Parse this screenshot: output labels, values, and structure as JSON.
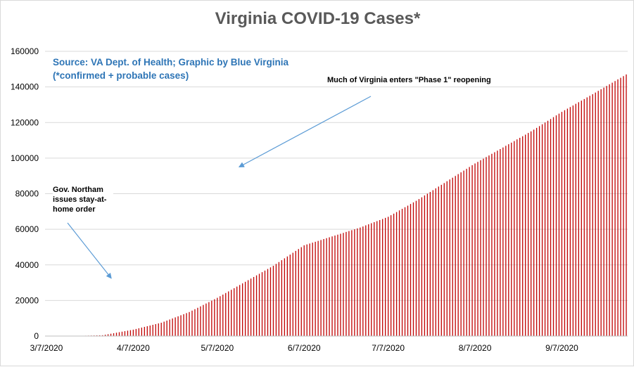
{
  "chart_data": {
    "type": "bar",
    "title": "Virginia COVID-19 Cases*",
    "source_note": [
      "Source: VA Dept. of Health; Graphic by Blue Virginia",
      "(*confirmed + probable cases)"
    ],
    "xlabel": "",
    "ylabel": "",
    "x_start": "3/7/2020",
    "x_end": "9/30/2020",
    "ylim": [
      0,
      160000
    ],
    "y_ticks": [
      0,
      20000,
      40000,
      60000,
      80000,
      100000,
      120000,
      140000,
      160000
    ],
    "y_tick_labels": [
      "0",
      "20000",
      "40000",
      "60000",
      "80000",
      "100000",
      "120000",
      "140000",
      "160000"
    ],
    "x_tick_labels": [
      "3/7/2020",
      "4/7/2020",
      "5/7/2020",
      "6/7/2020",
      "7/7/2020",
      "8/7/2020",
      "9/7/2020"
    ],
    "grid": "horizontal",
    "bar_color": "#c00000",
    "checkpoints": [
      {
        "date": "3/7/2020",
        "value": 0
      },
      {
        "date": "3/17/2020",
        "value": 67
      },
      {
        "date": "3/27/2020",
        "value": 460
      },
      {
        "date": "4/7/2020",
        "value": 3600
      },
      {
        "date": "4/17/2020",
        "value": 7500
      },
      {
        "date": "4/27/2020",
        "value": 13500
      },
      {
        "date": "5/7/2020",
        "value": 21500
      },
      {
        "date": "5/17/2020",
        "value": 30500
      },
      {
        "date": "5/27/2020",
        "value": 39500
      },
      {
        "date": "6/7/2020",
        "value": 51000
      },
      {
        "date": "6/17/2020",
        "value": 56000
      },
      {
        "date": "6/27/2020",
        "value": 61000
      },
      {
        "date": "7/7/2020",
        "value": 67000
      },
      {
        "date": "7/17/2020",
        "value": 76000
      },
      {
        "date": "7/27/2020",
        "value": 86000
      },
      {
        "date": "8/7/2020",
        "value": 97000
      },
      {
        "date": "8/17/2020",
        "value": 106000
      },
      {
        "date": "8/27/2020",
        "value": 115000
      },
      {
        "date": "9/7/2020",
        "value": 126000
      },
      {
        "date": "9/17/2020",
        "value": 135000
      },
      {
        "date": "9/30/2020",
        "value": 147000
      }
    ],
    "annotations": [
      {
        "text": "Gov. Northam issues stay-at-home order",
        "date": "3/30/2020"
      },
      {
        "text": "Much of Virginia enters \"Phase 1\" reopening",
        "date": "5/15/2020"
      }
    ]
  }
}
